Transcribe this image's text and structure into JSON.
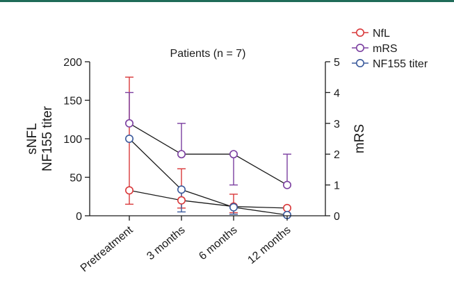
{
  "colors": {
    "top_rule": "#1f6b58",
    "axis": "#1a1a1a"
  },
  "chart_data": {
    "type": "line",
    "title": "Patients (n = 7)",
    "categories": [
      "Pretreatment",
      "3 months",
      "6 months",
      "12 months"
    ],
    "ylabel_left": [
      "sNFL",
      "NF155 titer"
    ],
    "ylabel_right": "mRS",
    "ylim_left": [
      0,
      200
    ],
    "yticks_left": [
      0,
      50,
      100,
      150,
      200
    ],
    "ylim_right": [
      0,
      5
    ],
    "yticks_right": [
      0,
      1,
      2,
      3,
      4,
      5
    ],
    "legend_placement": "top-right",
    "grid": false,
    "series": [
      {
        "name": "NfL",
        "axis": "left",
        "color": "#d9383a",
        "values": [
          33,
          20,
          12,
          10
        ],
        "error_low": [
          15,
          10,
          4,
          10
        ],
        "error_high": [
          180,
          61,
          28,
          10
        ]
      },
      {
        "name": "mRS",
        "axis": "right",
        "color": "#7b3fa0",
        "values": [
          3,
          2,
          2,
          1
        ],
        "error_low": [
          3,
          2,
          1,
          1
        ],
        "error_high": [
          4,
          3,
          2,
          2
        ]
      },
      {
        "name": "NF155 titer",
        "axis": "left",
        "color": "#3a5a9c",
        "values": [
          100,
          34,
          11,
          1
        ],
        "error_low": [
          100,
          5,
          2,
          1
        ],
        "error_high": [
          100,
          34,
          11,
          1
        ]
      }
    ]
  }
}
